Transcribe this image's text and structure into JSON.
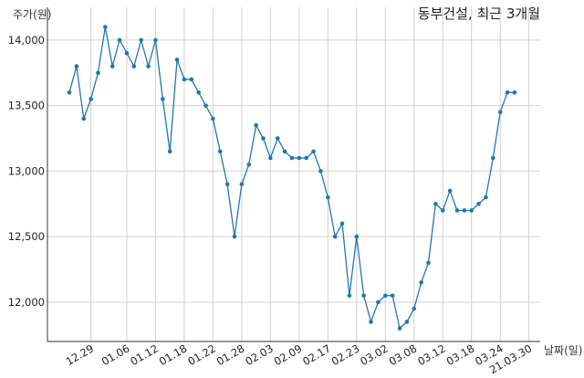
{
  "chart_data": {
    "type": "line",
    "title": "동부건설, 최근 3개월",
    "ylabel": "주가(원)",
    "xlabel": "날짜(일)",
    "ylim": [
      11700,
      14250
    ],
    "yticks": [
      12000,
      12500,
      13000,
      13500,
      14000
    ],
    "ytick_labels": [
      "12,000",
      "12,500",
      "13,000",
      "13,500",
      "14,000"
    ],
    "xtick_labels": [
      "12.29",
      "01.06",
      "01.12",
      "01.18",
      "01.22",
      "01.28",
      "02.03",
      "02.09",
      "02.17",
      "02.23",
      "03.02",
      "03.08",
      "03.12",
      "03.18",
      "03.24",
      "21.03.30"
    ],
    "xtick_index": [
      3,
      8,
      12,
      16,
      20,
      24,
      28,
      32,
      36,
      40,
      44,
      48,
      52,
      56,
      60,
      64
    ],
    "grid": true,
    "color": "#1f77b4",
    "series": [
      {
        "values": [
          13600,
          13800,
          13400,
          13550,
          13750,
          14100,
          13800,
          14000,
          13900,
          13800,
          14000,
          13800,
          14000,
          13550,
          13150,
          13850,
          13700,
          13700,
          13600,
          13500,
          13400,
          13150,
          12900,
          12500,
          12900,
          13050,
          13350,
          13250,
          13100,
          13250,
          13150,
          13100,
          13100,
          13100,
          13150,
          13000,
          12800,
          12500,
          12600,
          12050,
          12500,
          12050,
          11850,
          12000,
          12050,
          12050,
          11800,
          11850,
          11950,
          12150,
          12300,
          12750,
          12700,
          12850,
          12700,
          12700,
          12700,
          12750,
          12800,
          13100,
          13450,
          13600,
          13600
        ]
      }
    ]
  }
}
